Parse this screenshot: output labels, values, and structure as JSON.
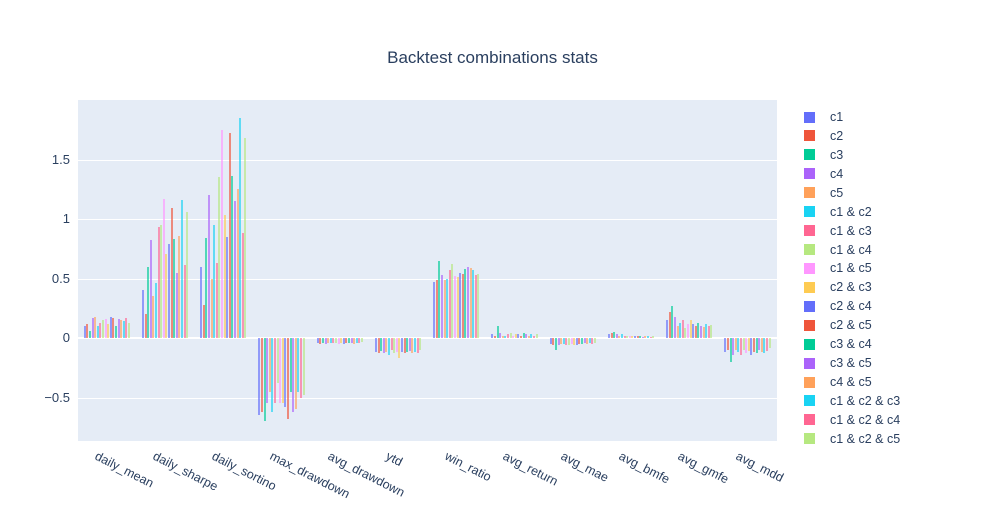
{
  "title": "Backtest combinations stats",
  "colors": {
    "paper_bg": "#FFFFFF",
    "plot_bg": "#E5ECF6",
    "grid": "#FFFFFF",
    "text": "#2A3F5F",
    "palette": [
      "#636EFA",
      "#EF553B",
      "#00CC96",
      "#AB63FA",
      "#FFA15A",
      "#19D3F3",
      "#FF6692",
      "#B6E880",
      "#FF97FF",
      "#FECB52"
    ]
  },
  "chart_data": {
    "type": "bar",
    "title": "Backtest combinations stats",
    "xlabel": "",
    "ylabel": "",
    "grid": true,
    "legend_position": "right",
    "ylim": [
      -0.87,
      2.0
    ],
    "yticks": [
      {
        "label": "−0.5",
        "value": -0.5
      },
      {
        "label": "0",
        "value": 0
      },
      {
        "label": "0.5",
        "value": 0.5
      },
      {
        "label": "1",
        "value": 1
      },
      {
        "label": "1.5",
        "value": 1.5
      }
    ],
    "categories": [
      "daily_mean",
      "daily_sharpe",
      "daily_sortino",
      "max_drawdown",
      "avg_drawdown",
      "ytd",
      "win_ratio",
      "avg_return",
      "avg_mae",
      "avg_bmfe",
      "avg_gmfe",
      "avg_mdd"
    ],
    "series": [
      {
        "name": "c1",
        "values": [
          0.1,
          0.4,
          0.6,
          -0.65,
          -0.04,
          -0.12,
          0.47,
          0.03,
          -0.05,
          0.03,
          0.15,
          -0.12
        ]
      },
      {
        "name": "c2",
        "values": [
          0.12,
          0.2,
          0.28,
          -0.62,
          -0.05,
          -0.13,
          0.49,
          0.02,
          -0.06,
          0.04,
          0.22,
          -0.1
        ]
      },
      {
        "name": "c3",
        "values": [
          0.06,
          0.6,
          0.84,
          -0.7,
          -0.04,
          -0.11,
          0.65,
          0.1,
          -0.1,
          0.05,
          0.27,
          -0.2
        ]
      },
      {
        "name": "c4",
        "values": [
          0.17,
          0.82,
          1.2,
          -0.55,
          -0.05,
          -0.13,
          0.53,
          0.04,
          -0.06,
          0.03,
          0.18,
          -0.14
        ]
      },
      {
        "name": "c5",
        "values": [
          0.18,
          0.35,
          0.5,
          -0.45,
          -0.04,
          -0.12,
          0.49,
          0.02,
          -0.05,
          0.02,
          0.1,
          -0.1
        ]
      },
      {
        "name": "c1 & c2",
        "values": [
          0.1,
          0.46,
          0.95,
          -0.62,
          -0.04,
          -0.14,
          0.5,
          0.02,
          -0.05,
          0.03,
          0.13,
          -0.12
        ]
      },
      {
        "name": "c1 & c3",
        "values": [
          0.13,
          0.93,
          0.63,
          -0.55,
          -0.04,
          -0.1,
          0.57,
          0.03,
          -0.06,
          0.02,
          0.15,
          -0.14
        ]
      },
      {
        "name": "c1 & c4",
        "values": [
          0.15,
          0.95,
          1.35,
          -0.38,
          -0.04,
          -0.13,
          0.62,
          0.04,
          -0.06,
          0.02,
          0.08,
          -0.1
        ]
      },
      {
        "name": "c1 & c5",
        "values": [
          0.16,
          1.17,
          1.75,
          -0.55,
          -0.05,
          -0.12,
          0.52,
          0.02,
          -0.05,
          0.02,
          0.12,
          -0.13
        ]
      },
      {
        "name": "c2 & c3",
        "values": [
          0.12,
          0.71,
          1.03,
          -0.55,
          -0.04,
          -0.17,
          0.51,
          0.03,
          -0.06,
          0.02,
          0.15,
          -0.11
        ]
      },
      {
        "name": "c2 & c4",
        "values": [
          0.18,
          0.79,
          0.85,
          -0.58,
          -0.05,
          -0.12,
          0.55,
          0.03,
          -0.06,
          0.02,
          0.12,
          -0.14
        ]
      },
      {
        "name": "c2 & c5",
        "values": [
          0.17,
          1.09,
          1.72,
          -0.68,
          -0.04,
          -0.13,
          0.54,
          0.02,
          -0.05,
          0.02,
          0.1,
          -0.12
        ]
      },
      {
        "name": "c3 & c4",
        "values": [
          0.1,
          0.83,
          1.36,
          -0.45,
          -0.04,
          -0.12,
          0.58,
          0.04,
          -0.05,
          0.02,
          0.13,
          -0.13
        ]
      },
      {
        "name": "c3 & c5",
        "values": [
          0.16,
          0.55,
          1.15,
          -0.62,
          -0.04,
          -0.11,
          0.6,
          0.03,
          -0.04,
          0.01,
          0.1,
          -0.1
        ]
      },
      {
        "name": "c4 & c5",
        "values": [
          0.15,
          0.86,
          1.25,
          -0.6,
          -0.05,
          -0.13,
          0.59,
          0.02,
          -0.05,
          0.02,
          0.09,
          -0.12
        ]
      },
      {
        "name": "c1 & c2 & c3",
        "values": [
          0.14,
          1.16,
          1.85,
          -0.45,
          -0.04,
          -0.12,
          0.57,
          0.03,
          -0.04,
          0.02,
          0.12,
          -0.13
        ]
      },
      {
        "name": "c1 & c2 & c4",
        "values": [
          0.17,
          0.61,
          0.88,
          -0.5,
          -0.04,
          -0.13,
          0.53,
          0.02,
          -0.05,
          0.01,
          0.1,
          -0.11
        ]
      },
      {
        "name": "c1 & c2 & c5",
        "values": [
          0.13,
          1.06,
          1.68,
          -0.48,
          -0.03,
          -0.1,
          0.54,
          0.03,
          -0.04,
          0.02,
          0.11,
          -0.08
        ]
      }
    ]
  }
}
